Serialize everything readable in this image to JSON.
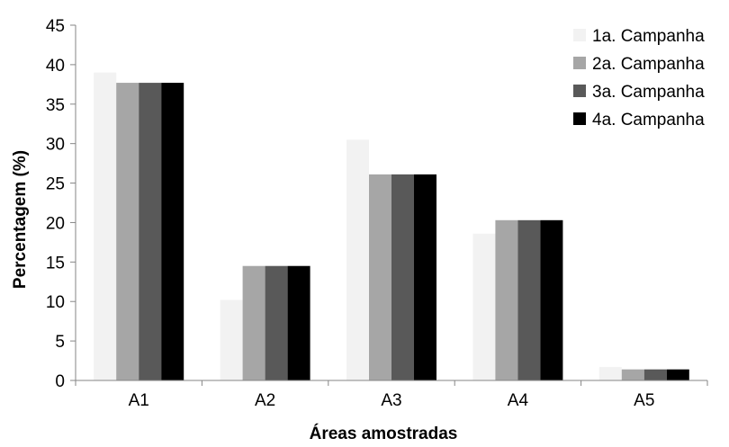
{
  "chart_data": {
    "type": "bar",
    "title": "",
    "xlabel": "Áreas amostradas",
    "ylabel": "Percentagem (%)",
    "ylim": [
      0,
      45
    ],
    "yticks": [
      0,
      5,
      10,
      15,
      20,
      25,
      30,
      35,
      40,
      45
    ],
    "categories": [
      "A1",
      "A2",
      "A3",
      "A4",
      "A5"
    ],
    "grid": false,
    "legend_position": "top-right",
    "series": [
      {
        "name": "1a. Campanha",
        "color": "#f2f2f2",
        "values": [
          39.0,
          10.2,
          30.5,
          18.6,
          1.7
        ]
      },
      {
        "name": "2a. Campanha",
        "color": "#a6a6a6",
        "values": [
          37.7,
          14.5,
          26.1,
          20.3,
          1.4
        ]
      },
      {
        "name": "3a. Campanha",
        "color": "#595959",
        "values": [
          37.7,
          14.5,
          26.1,
          20.3,
          1.4
        ]
      },
      {
        "name": "4a. Campanha",
        "color": "#000000",
        "values": [
          37.7,
          14.5,
          26.1,
          20.3,
          1.4
        ]
      }
    ]
  }
}
